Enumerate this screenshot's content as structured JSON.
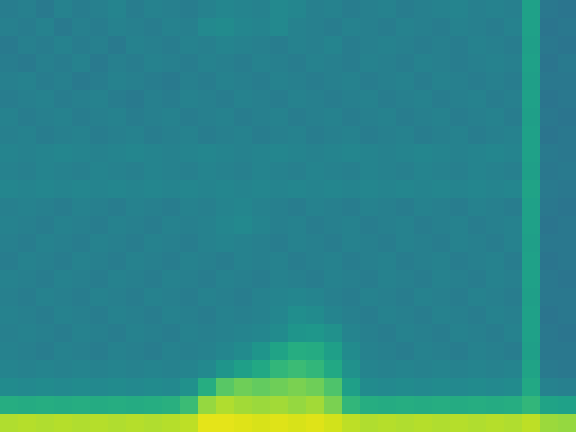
{
  "chart_data": {
    "type": "heatmap",
    "color": "viridis",
    "tick_labels": false,
    "xlim": [
      0,
      32
    ],
    "ylim": [
      0,
      24
    ],
    "zlim": [
      0,
      100
    ],
    "cells": [
      [
        42,
        43,
        41,
        44,
        42,
        43,
        45,
        42,
        44,
        43,
        42,
        44,
        46,
        45,
        44,
        47,
        46,
        43,
        44,
        42,
        43,
        44,
        42,
        43,
        44,
        45,
        43,
        44,
        43,
        57,
        40,
        39
      ],
      [
        43,
        42,
        44,
        41,
        43,
        42,
        44,
        43,
        42,
        44,
        43,
        47,
        48,
        46,
        45,
        47,
        44,
        43,
        42,
        44,
        43,
        42,
        44,
        43,
        42,
        44,
        43,
        42,
        44,
        57,
        39,
        40
      ],
      [
        41,
        43,
        42,
        44,
        42,
        43,
        41,
        44,
        43,
        42,
        44,
        43,
        45,
        44,
        43,
        42,
        44,
        43,
        45,
        42,
        43,
        44,
        43,
        42,
        43,
        42,
        44,
        43,
        42,
        56,
        40,
        39
      ],
      [
        42,
        41,
        43,
        42,
        44,
        41,
        43,
        42,
        44,
        43,
        42,
        44,
        43,
        42,
        44,
        43,
        42,
        44,
        43,
        42,
        44,
        43,
        42,
        44,
        43,
        42,
        43,
        44,
        43,
        57,
        39,
        41
      ],
      [
        43,
        44,
        42,
        43,
        41,
        42,
        44,
        43,
        42,
        41,
        43,
        42,
        44,
        43,
        42,
        44,
        43,
        42,
        43,
        44,
        42,
        43,
        44,
        42,
        44,
        43,
        42,
        43,
        42,
        56,
        40,
        40
      ],
      [
        42,
        43,
        44,
        42,
        43,
        44,
        42,
        41,
        43,
        42,
        44,
        43,
        42,
        44,
        43,
        42,
        44,
        43,
        42,
        43,
        44,
        42,
        43,
        44,
        42,
        43,
        44,
        42,
        43,
        57,
        39,
        40
      ],
      [
        44,
        42,
        43,
        44,
        42,
        43,
        44,
        42,
        43,
        44,
        42,
        43,
        44,
        42,
        43,
        44,
        42,
        43,
        44,
        42,
        43,
        44,
        42,
        43,
        44,
        42,
        43,
        44,
        42,
        56,
        40,
        39
      ],
      [
        43,
        44,
        42,
        43,
        44,
        42,
        43,
        44,
        42,
        43,
        44,
        42,
        43,
        44,
        42,
        43,
        44,
        42,
        43,
        44,
        42,
        43,
        44,
        42,
        43,
        44,
        42,
        43,
        44,
        57,
        39,
        40
      ],
      [
        45,
        44,
        45,
        46,
        45,
        44,
        45,
        46,
        45,
        44,
        45,
        46,
        45,
        44,
        45,
        46,
        45,
        44,
        45,
        46,
        45,
        44,
        45,
        46,
        45,
        44,
        45,
        46,
        45,
        57,
        41,
        40
      ],
      [
        44,
        43,
        45,
        44,
        43,
        45,
        44,
        43,
        45,
        44,
        43,
        45,
        44,
        43,
        45,
        44,
        43,
        45,
        44,
        43,
        45,
        44,
        43,
        45,
        44,
        43,
        45,
        44,
        43,
        56,
        40,
        41
      ],
      [
        46,
        45,
        46,
        45,
        46,
        45,
        46,
        45,
        46,
        45,
        46,
        45,
        46,
        45,
        46,
        45,
        46,
        45,
        46,
        45,
        46,
        45,
        46,
        45,
        46,
        45,
        46,
        45,
        46,
        58,
        41,
        40
      ],
      [
        43,
        44,
        43,
        42,
        44,
        43,
        42,
        44,
        43,
        42,
        44,
        43,
        45,
        46,
        44,
        43,
        42,
        44,
        43,
        42,
        44,
        43,
        42,
        44,
        43,
        42,
        44,
        43,
        42,
        57,
        40,
        39
      ],
      [
        44,
        43,
        42,
        44,
        43,
        42,
        44,
        43,
        42,
        44,
        43,
        44,
        46,
        47,
        45,
        43,
        44,
        42,
        43,
        44,
        42,
        43,
        44,
        42,
        43,
        44,
        42,
        43,
        44,
        57,
        39,
        40
      ],
      [
        43,
        42,
        44,
        43,
        42,
        44,
        43,
        42,
        44,
        43,
        42,
        44,
        45,
        44,
        43,
        42,
        44,
        43,
        42,
        44,
        43,
        42,
        44,
        43,
        42,
        44,
        43,
        42,
        44,
        56,
        40,
        40
      ],
      [
        42,
        44,
        43,
        42,
        44,
        43,
        42,
        44,
        43,
        42,
        44,
        43,
        42,
        44,
        43,
        44,
        42,
        43,
        44,
        42,
        43,
        44,
        42,
        43,
        44,
        42,
        43,
        44,
        42,
        57,
        39,
        40
      ],
      [
        44,
        43,
        42,
        44,
        43,
        42,
        44,
        43,
        42,
        44,
        43,
        42,
        44,
        43,
        42,
        44,
        43,
        42,
        44,
        43,
        42,
        44,
        43,
        42,
        44,
        43,
        42,
        44,
        43,
        57,
        40,
        39
      ],
      [
        43,
        42,
        44,
        43,
        42,
        44,
        43,
        42,
        44,
        43,
        42,
        44,
        43,
        42,
        44,
        45,
        46,
        45,
        43,
        42,
        44,
        43,
        42,
        44,
        43,
        42,
        44,
        43,
        42,
        56,
        40,
        40
      ],
      [
        44,
        43,
        42,
        44,
        43,
        42,
        44,
        43,
        42,
        44,
        43,
        42,
        44,
        43,
        44,
        46,
        49,
        48,
        45,
        43,
        42,
        44,
        43,
        42,
        44,
        43,
        42,
        44,
        43,
        57,
        39,
        40
      ],
      [
        43,
        44,
        43,
        42,
        44,
        43,
        42,
        44,
        43,
        42,
        44,
        43,
        44,
        45,
        46,
        48,
        52,
        53,
        50,
        45,
        43,
        42,
        44,
        43,
        42,
        44,
        43,
        42,
        44,
        57,
        40,
        39
      ],
      [
        44,
        43,
        42,
        44,
        43,
        42,
        44,
        43,
        42,
        44,
        43,
        44,
        46,
        48,
        52,
        58,
        62,
        61,
        56,
        48,
        44,
        43,
        42,
        44,
        43,
        42,
        44,
        43,
        42,
        56,
        40,
        40
      ],
      [
        45,
        44,
        45,
        44,
        45,
        44,
        45,
        44,
        45,
        44,
        45,
        47,
        52,
        56,
        60,
        66,
        68,
        66,
        60,
        50,
        45,
        44,
        45,
        44,
        45,
        44,
        45,
        44,
        45,
        58,
        41,
        40
      ],
      [
        48,
        47,
        48,
        47,
        48,
        47,
        48,
        47,
        48,
        47,
        50,
        62,
        74,
        78,
        76,
        78,
        80,
        78,
        72,
        56,
        48,
        47,
        48,
        47,
        48,
        47,
        48,
        47,
        48,
        60,
        44,
        43
      ],
      [
        62,
        61,
        62,
        61,
        62,
        61,
        62,
        61,
        62,
        63,
        68,
        84,
        88,
        86,
        85,
        86,
        84,
        86,
        80,
        66,
        62,
        61,
        62,
        61,
        62,
        61,
        62,
        61,
        62,
        66,
        58,
        57
      ],
      [
        88,
        89,
        88,
        89,
        88,
        89,
        88,
        89,
        88,
        89,
        90,
        96,
        96,
        95,
        94,
        95,
        94,
        95,
        93,
        90,
        88,
        89,
        88,
        89,
        88,
        89,
        88,
        89,
        88,
        90,
        85,
        84
      ]
    ]
  }
}
